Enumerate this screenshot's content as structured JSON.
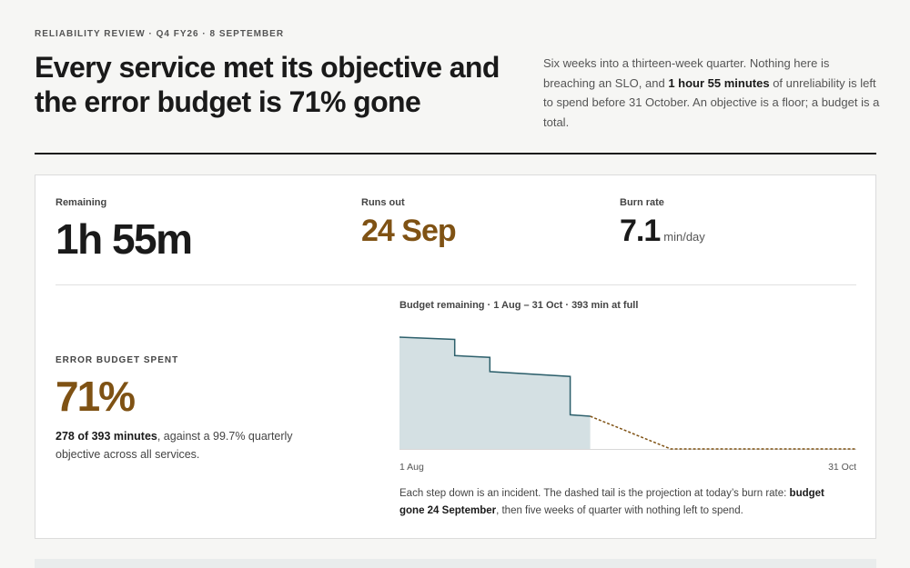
{
  "header": {
    "eyebrow": "RELIABILITY REVIEW · Q4 FY26 · 8 SEPTEMBER",
    "title": "Every service met its objective and the error budget is 71% gone",
    "intro_1": "Six weeks into a thirteen-week quarter. Nothing here is breaching an SLO, and ",
    "intro_bold": "1 hour 55 minutes",
    "intro_2": " of unreliability is left to spend before 31 October. An objective is a floor; a budget is a total."
  },
  "metrics": {
    "remaining_label": "Remaining",
    "remaining_value": "1h 55m",
    "runs_out_label": "Runs out",
    "runs_out_value": "24 Sep",
    "burn_label": "Burn rate",
    "burn_value": "7.1",
    "burn_unit": "min/day"
  },
  "spent": {
    "label": "ERROR BUDGET SPENT",
    "value": "71%",
    "note_bold": "278 of 393 minutes",
    "note_rest": ", against a 99.7% quarterly objective across all services."
  },
  "chart_title": "Budget remaining · 1 Aug – 31 Oct · 393 min at full",
  "caption": {
    "text_1": "Each step down is an incident. The dashed tail is the projection at today’s burn rate: ",
    "bold": "budget gone 24 September",
    "text_2": ", then five weeks of quarter with nothing left to spend."
  },
  "colors": {
    "accent": "#7f5214",
    "line": "#2c5f6b",
    "fill": "#d4e0e3",
    "projection": "#7f5214"
  },
  "chart_data": {
    "type": "area",
    "x_unit": "day of quarter (1 Aug = 0, 31 Oct = 91)",
    "x_ticks": [
      "1 Aug",
      "31 Oct"
    ],
    "xlim": [
      0,
      91
    ],
    "ylim": [
      0,
      393
    ],
    "actual": [
      {
        "x": 0,
        "y": 393
      },
      {
        "x": 11,
        "y": 385
      },
      {
        "x": 11,
        "y": 328
      },
      {
        "x": 18,
        "y": 322
      },
      {
        "x": 18,
        "y": 272
      },
      {
        "x": 34,
        "y": 255
      },
      {
        "x": 34,
        "y": 120
      },
      {
        "x": 38,
        "y": 115
      }
    ],
    "projection": [
      {
        "x": 38,
        "y": 115
      },
      {
        "x": 54,
        "y": 0
      },
      {
        "x": 91,
        "y": 0
      }
    ]
  }
}
